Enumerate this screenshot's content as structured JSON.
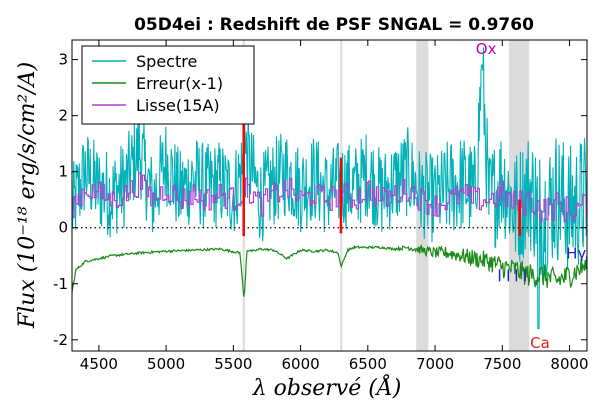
{
  "chart_data": {
    "type": "line",
    "title": "05D4ei : Redshift de PSF SNGAL = 0.9760",
    "xlabel": "λ observé (Å)",
    "ylabel": "Flux (10⁻¹⁸ erg/s/cm²/A)",
    "xlim": [
      4300,
      8130
    ],
    "ylim": [
      -2.2,
      3.35
    ],
    "xticks": [
      4500,
      5000,
      5500,
      6000,
      6500,
      7000,
      7500,
      8000
    ],
    "yticks": [
      -2,
      -1,
      0,
      1,
      2,
      3
    ],
    "xtick_labels": [
      "4500",
      "5000",
      "5500",
      "6000",
      "6500",
      "7000",
      "7500",
      "8000"
    ],
    "ytick_labels": [
      "-2",
      "-1",
      "0",
      "1",
      "2",
      "3"
    ],
    "legend": {
      "placement": "top-left",
      "entries": [
        {
          "label": "Spectre",
          "color": "#00b2b8"
        },
        {
          "label": "Erreur(x-1)",
          "color": "#1a8a1a"
        },
        {
          "label": "Lisse(15A)",
          "color": "#b040d0"
        }
      ]
    },
    "zero_line": {
      "y": 0,
      "style": "dotted"
    },
    "shaded_bands": [
      {
        "x": [
          5570,
          5585
        ]
      },
      {
        "x": [
          6295,
          6310
        ]
      },
      {
        "x": [
          6860,
          6950
        ]
      },
      {
        "x": [
          7550,
          7700
        ]
      }
    ],
    "sky_lines_red": [
      {
        "x": 5577,
        "y_top": 3.0,
        "y_bottom": -0.15
      },
      {
        "x": 6300,
        "y_top": 1.25,
        "y_bottom": -0.1
      },
      {
        "x": 7630,
        "y_top": 0.5,
        "y_bottom": -0.15
      }
    ],
    "annotations": [
      {
        "text": "Ox",
        "x": 7380,
        "y": 3.1,
        "color": "#c000c0"
      },
      {
        "text": "Ca",
        "x": 7780,
        "y": -2.15,
        "color": "#e02020"
      },
      {
        "text": "Hγ",
        "x": 8050,
        "y": -0.55,
        "color": "#2020c8"
      }
    ],
    "marker_ticks": {
      "color": "#2020c8",
      "y": -0.85,
      "x": [
        7480,
        7545,
        7605,
        7670
      ]
    },
    "series": [
      {
        "name": "Spectre",
        "color": "#00b2b8",
        "x": [
          4300,
          4400,
          4500,
          4600,
          4700,
          4800,
          4900,
          5000,
          5100,
          5200,
          5300,
          5400,
          5500,
          5600,
          5700,
          5800,
          5900,
          6000,
          6100,
          6200,
          6300,
          6400,
          6500,
          6600,
          6700,
          6800,
          6900,
          7000,
          7100,
          7200,
          7300,
          7350,
          7400,
          7500,
          7600,
          7700,
          7800,
          7900,
          8000,
          8100
        ],
        "y": [
          0.3,
          1.0,
          0.7,
          0.6,
          0.8,
          1.4,
          0.5,
          1.2,
          0.6,
          0.9,
          0.7,
          0.8,
          0.6,
          1.3,
          0.5,
          0.8,
          1.0,
          0.7,
          0.9,
          0.6,
          0.8,
          0.7,
          1.0,
          0.6,
          0.8,
          1.0,
          0.6,
          0.5,
          0.7,
          0.8,
          0.6,
          2.9,
          0.4,
          0.9,
          0.3,
          0.7,
          0.2,
          0.6,
          0.3,
          0.5
        ],
        "spread": [
          0.8,
          0.8,
          0.8,
          0.8,
          0.8,
          0.8,
          0.8,
          0.8,
          0.8,
          0.8,
          0.8,
          0.8,
          0.8,
          0.8,
          0.8,
          0.8,
          0.8,
          0.8,
          0.8,
          0.8,
          0.8,
          0.8,
          0.8,
          0.8,
          0.8,
          0.8,
          0.8,
          0.8,
          0.9,
          0.9,
          0.9,
          0.9,
          1.0,
          1.0,
          1.1,
          1.1,
          1.2,
          1.2,
          1.2,
          1.2
        ]
      },
      {
        "name": "Erreur(x-1)",
        "color": "#1a8a1a",
        "x": [
          4300,
          4330,
          4400,
          4500,
          4600,
          4800,
          5000,
          5200,
          5400,
          5550,
          5580,
          5600,
          5650,
          5700,
          5800,
          5900,
          6000,
          6100,
          6200,
          6280,
          6300,
          6350,
          6400,
          6500,
          6600,
          6700,
          6800,
          6900,
          7000,
          7100,
          7200,
          7300,
          7400,
          7500,
          7600,
          7700,
          7800,
          7900,
          8000,
          8100
        ],
        "y": [
          -1.15,
          -0.75,
          -0.6,
          -0.55,
          -0.5,
          -0.45,
          -0.42,
          -0.4,
          -0.38,
          -0.45,
          -1.3,
          -0.4,
          -0.42,
          -0.38,
          -0.4,
          -0.55,
          -0.4,
          -0.42,
          -0.4,
          -0.45,
          -0.7,
          -0.4,
          -0.35,
          -0.35,
          -0.35,
          -0.38,
          -0.35,
          -0.4,
          -0.45,
          -0.45,
          -0.5,
          -0.55,
          -0.6,
          -0.7,
          -0.75,
          -0.85,
          -0.85,
          -0.95,
          -0.85,
          -0.7
        ],
        "spread": [
          0.02,
          0.02,
          0.02,
          0.02,
          0.02,
          0.02,
          0.02,
          0.02,
          0.02,
          0.02,
          0.02,
          0.02,
          0.02,
          0.02,
          0.02,
          0.02,
          0.02,
          0.02,
          0.02,
          0.02,
          0.02,
          0.02,
          0.02,
          0.02,
          0.02,
          0.02,
          0.05,
          0.08,
          0.1,
          0.12,
          0.14,
          0.16,
          0.18,
          0.2,
          0.2,
          0.22,
          0.22,
          0.22,
          0.22,
          0.2
        ]
      },
      {
        "name": "Lisse(15A)",
        "color": "#b040d0",
        "x": [
          4300,
          4400,
          4500,
          4600,
          4700,
          4800,
          4900,
          5000,
          5100,
          5200,
          5300,
          5400,
          5500,
          5600,
          5700,
          5800,
          5900,
          6000,
          6100,
          6200,
          6300,
          6400,
          6500,
          6600,
          6700,
          6800,
          6900,
          7000,
          7100,
          7200,
          7300,
          7400,
          7500,
          7600,
          7700,
          7800,
          7900,
          8000,
          8100
        ],
        "y": [
          0.4,
          0.7,
          0.6,
          0.5,
          0.6,
          0.8,
          0.5,
          0.7,
          0.5,
          0.6,
          0.5,
          0.6,
          0.5,
          0.7,
          0.4,
          0.6,
          0.7,
          0.5,
          0.6,
          0.5,
          0.6,
          0.5,
          0.7,
          0.5,
          0.6,
          0.7,
          0.5,
          0.4,
          0.5,
          0.6,
          0.5,
          0.5,
          0.6,
          0.4,
          0.5,
          0.3,
          0.4,
          0.3,
          0.4
        ],
        "spread": [
          0.22,
          0.22,
          0.22,
          0.22,
          0.22,
          0.22,
          0.22,
          0.22,
          0.22,
          0.22,
          0.22,
          0.22,
          0.22,
          0.22,
          0.22,
          0.22,
          0.22,
          0.22,
          0.22,
          0.22,
          0.22,
          0.22,
          0.22,
          0.22,
          0.22,
          0.22,
          0.22,
          0.22,
          0.22,
          0.22,
          0.22,
          0.22,
          0.25,
          0.25,
          0.25,
          0.25,
          0.25,
          0.25,
          0.25
        ]
      }
    ]
  }
}
